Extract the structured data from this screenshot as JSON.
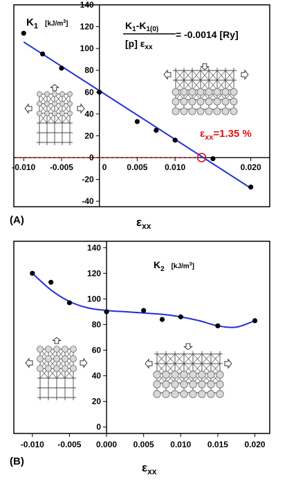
{
  "chart_data": [
    {
      "panel_label": "(A)",
      "type": "scatter",
      "xlabel": "ε",
      "xlabel_sub": "xx",
      "ylabel": "K",
      "ylabel_sub": "1",
      "ylabel_unit": "[kJ/m",
      "ylabel_unit_sup": "3",
      "ylabel_unit_end": "]",
      "formula_num": "K",
      "formula_num_sub1": "1",
      "formula_num_mid": "-K",
      "formula_num_sub2": "1(0)",
      "formula_den": "[p] ε",
      "formula_den_sub": "xx",
      "formula_value": "= -0.0014  [Ry]",
      "annotation_eps": "ε",
      "annotation_sub": "xx",
      "annotation_value": "=1.35 %",
      "xlim": [
        -0.0113,
        0.0225
      ],
      "ylim": [
        -45,
        140
      ],
      "x_ticks": [
        -0.01,
        -0.005,
        0,
        0.005,
        0.01,
        0.02
      ],
      "x_tick_labels": [
        "-0.010",
        "-0.005",
        "0",
        "0.005",
        "0.010",
        "0.020"
      ],
      "y_ticks": [
        -40,
        -20,
        0,
        20,
        40,
        60,
        80,
        100,
        120,
        140
      ],
      "y_tick_labels": [
        "-40",
        "-20",
        "0",
        "20",
        "40",
        "60",
        "80",
        "100",
        "120",
        "140"
      ],
      "points": {
        "x": [
          -0.01,
          -0.0075,
          -0.005,
          0,
          0.005,
          0.0075,
          0.01,
          0.015,
          0.02
        ],
        "y": [
          114,
          95,
          82,
          60,
          33,
          25,
          16,
          -1,
          -27
        ]
      },
      "fit_line": {
        "x": [
          -0.01,
          0.02
        ],
        "y": [
          106,
          -28
        ]
      },
      "critical_point": {
        "x": 0.0135,
        "y": 0
      },
      "colors": {
        "fit": "#1f2fd8",
        "marker": "#000000",
        "annotation": "#e11111"
      }
    },
    {
      "panel_label": "(B)",
      "type": "scatter",
      "xlabel": "ε",
      "xlabel_sub": "xx",
      "ylabel": "K",
      "ylabel_sub": "2",
      "ylabel_unit": "[kJ/m",
      "ylabel_unit_sup": "3",
      "ylabel_unit_end": "]",
      "xlim": [
        -0.0125,
        0.022
      ],
      "ylim": [
        -5,
        145
      ],
      "x_ticks": [
        -0.01,
        -0.005,
        0,
        0.005,
        0.01,
        0.015,
        0.02
      ],
      "x_tick_labels": [
        "-0.010",
        "-0.005",
        "0.000",
        "0.005",
        "0.010",
        "0.015",
        "0.020"
      ],
      "y_ticks": [
        0,
        20,
        40,
        60,
        80,
        100,
        120,
        140
      ],
      "y_tick_labels": [
        "0",
        "20",
        "40",
        "60",
        "80",
        "100",
        "120",
        "140"
      ],
      "points": {
        "x": [
          -0.01,
          -0.0075,
          -0.005,
          0,
          0.005,
          0.0075,
          0.01,
          0.015,
          0.02
        ],
        "y": [
          120,
          113,
          97,
          90,
          91,
          84,
          86,
          79,
          83
        ]
      },
      "fit_curve": {
        "x": [
          -0.01,
          -0.0075,
          -0.005,
          -0.0025,
          0,
          0.0025,
          0.005,
          0.0075,
          0.01,
          0.0125,
          0.015,
          0.0175,
          0.02
        ],
        "y": [
          120,
          107,
          98,
          93,
          91,
          90,
          89,
          88,
          86,
          83,
          79,
          78,
          83
        ]
      },
      "colors": {
        "fit": "#1f2fd8",
        "marker": "#000000"
      }
    }
  ]
}
